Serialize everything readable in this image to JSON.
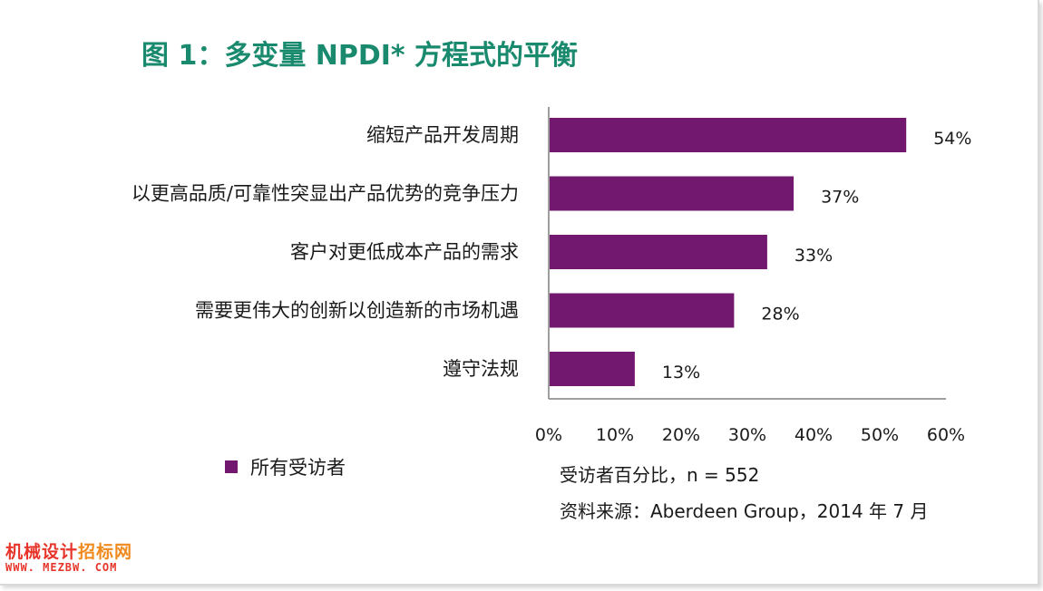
{
  "title": "图 1：多变量 NPDI* 方程式的平衡",
  "chart_data": {
    "type": "bar",
    "orientation": "horizontal",
    "categories": [
      "缩短产品开发周期",
      "以更高品质/可靠性突显出产品优势的竞争压力",
      "客户对更低成本产品的需求",
      "需要更伟大的创新以创造新的市场机遇",
      "遵守法规"
    ],
    "series": [
      {
        "name": "所有受访者",
        "values": [
          54,
          37,
          33,
          28,
          13
        ]
      }
    ],
    "value_labels": [
      "54%",
      "37%",
      "33%",
      "28%",
      "13%"
    ],
    "xlim": [
      0,
      60
    ],
    "xticks": [
      0,
      10,
      20,
      30,
      40,
      50,
      60
    ],
    "xtick_labels": [
      "0%",
      "10%",
      "20%",
      "30%",
      "40%",
      "50%",
      "60%"
    ],
    "legend_position": "bottom-left",
    "grid": false,
    "bar_color": "#72186e"
  },
  "legend": {
    "label": "所有受访者",
    "color": "#72186e"
  },
  "notes": {
    "sample": "受访者百分比，n = 552",
    "source": "资料来源：Aberdeen Group，2014 年 7 月"
  },
  "watermark": {
    "line1_a": "机械设计",
    "line1_b": "招标网",
    "line2": "WWW. MEZBW. COM"
  },
  "colors": {
    "title": "#1a8a6e",
    "bar": "#72186e",
    "watermark_red": "#e8352b",
    "watermark_orange": "#f08a1c"
  }
}
